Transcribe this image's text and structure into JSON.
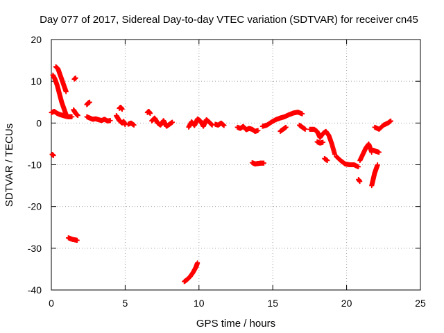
{
  "chart_data": {
    "type": "scatter",
    "title": "Day 077 of 2017, Sidereal Day-to-day VTEC variation (SDTVAR) for receiver cn45",
    "xlabel": "GPS time / hours",
    "ylabel": "SDTVAR / TECUs",
    "xlim": [
      0,
      25
    ],
    "ylim": [
      -40,
      20
    ],
    "xticks": [
      0,
      5,
      10,
      15,
      20,
      25
    ],
    "yticks": [
      -40,
      -30,
      -20,
      -10,
      0,
      10,
      20
    ],
    "grid": true,
    "marker": "plus",
    "series": [
      {
        "name": "SDTVAR",
        "color": "#ff0000",
        "segments": [
          {
            "x": [
              0.1,
              0.25,
              0.4,
              0.55,
              0.7,
              0.85,
              1.0,
              1.1
            ],
            "y": [
              11.5,
              10.5,
              9.0,
              7.0,
              5.0,
              3.5,
              2.0,
              1.5
            ]
          },
          {
            "x": [
              0.3,
              0.45,
              0.6,
              0.75,
              0.9,
              1.0
            ],
            "y": [
              13.5,
              13.0,
              11.5,
              10.0,
              8.5,
              7.5
            ]
          },
          {
            "x": [
              0.0,
              0.2,
              0.4,
              0.6,
              0.8,
              1.0,
              1.2,
              1.4
            ],
            "y": [
              2.5,
              2.8,
              2.3,
              2.0,
              1.8,
              1.6,
              1.5,
              1.5
            ]
          },
          {
            "x": [
              0.05,
              0.15
            ],
            "y": [
              -7.5,
              -7.8
            ]
          },
          {
            "x": [
              1.55,
              1.65
            ],
            "y": [
              10.5,
              10.8
            ]
          },
          {
            "x": [
              1.5,
              1.6,
              1.7,
              1.8
            ],
            "y": [
              3.2,
              2.6,
              2.1,
              1.8
            ]
          },
          {
            "x": [
              1.15,
              1.3,
              1.45,
              1.6,
              1.75
            ],
            "y": [
              -27.5,
              -27.7,
              -27.9,
              -28.0,
              -28.1
            ]
          },
          {
            "x": [
              2.4,
              2.5,
              2.6
            ],
            "y": [
              4.4,
              4.8,
              5.0
            ]
          },
          {
            "x": [
              2.4,
              2.6,
              2.8,
              3.0,
              3.2,
              3.4,
              3.6,
              3.8,
              4.0
            ],
            "y": [
              1.5,
              1.2,
              0.9,
              1.0,
              0.8,
              0.6,
              0.9,
              0.5,
              0.6
            ]
          },
          {
            "x": [
              4.4,
              4.5,
              4.6,
              4.7,
              4.8,
              4.9,
              5.0
            ],
            "y": [
              1.8,
              1.2,
              0.6,
              0.3,
              0.0,
              0.4,
              -0.4
            ]
          },
          {
            "x": [
              4.6,
              4.7,
              4.8
            ],
            "y": [
              3.5,
              3.8,
              3.3
            ]
          },
          {
            "x": [
              5.2,
              5.4,
              5.6
            ],
            "y": [
              -0.3,
              0.0,
              -0.5
            ]
          },
          {
            "x": [
              6.5,
              6.6,
              6.7
            ],
            "y": [
              2.5,
              2.8,
              2.3
            ]
          },
          {
            "x": [
              6.8,
              7.0,
              7.2,
              7.4,
              7.6,
              7.8,
              8.0,
              8.2
            ],
            "y": [
              0.5,
              1.2,
              0.0,
              -0.5,
              0.6,
              -0.8,
              -0.3,
              0.2
            ]
          },
          {
            "x": [
              9.0,
              9.2,
              9.4,
              9.6,
              9.8,
              9.9
            ],
            "y": [
              -38.0,
              -37.5,
              -36.8,
              -35.8,
              -34.5,
              -33.5
            ]
          },
          {
            "x": [
              9.3,
              9.5,
              9.7,
              9.9,
              10.1,
              10.3,
              10.5,
              10.7,
              10.9
            ],
            "y": [
              -1.0,
              0.3,
              -0.6,
              1.0,
              0.5,
              -0.8,
              0.8,
              0.2,
              -0.5
            ]
          },
          {
            "x": [
              11.1,
              11.3,
              11.5,
              11.7
            ],
            "y": [
              -0.3,
              -0.5,
              0.0,
              -0.6
            ]
          },
          {
            "x": [
              12.6,
              12.8,
              13.0,
              13.2,
              13.4,
              13.6,
              13.8,
              14.0
            ],
            "y": [
              -1.0,
              -1.3,
              -0.8,
              -1.6,
              -1.3,
              -1.5,
              -2.0,
              -1.8
            ]
          },
          {
            "x": [
              13.6,
              13.8,
              14.0,
              14.2,
              14.4
            ],
            "y": [
              -9.5,
              -9.8,
              -9.7,
              -9.6,
              -9.6
            ]
          },
          {
            "x": [
              14.3,
              14.6,
              14.9,
              15.2,
              15.5,
              15.8,
              16.1,
              16.4,
              16.7,
              17.0
            ],
            "y": [
              -0.8,
              -0.5,
              0.2,
              0.8,
              1.2,
              1.5,
              2.0,
              2.4,
              2.6,
              2.2
            ]
          },
          {
            "x": [
              15.5,
              15.7,
              15.9
            ],
            "y": [
              -2.0,
              -1.5,
              -1.0
            ]
          },
          {
            "x": [
              16.8,
              17.0,
              17.2
            ],
            "y": [
              -0.5,
              -1.0,
              -1.5
            ]
          },
          {
            "x": [
              17.5,
              17.8,
              18.0,
              18.2,
              18.4,
              18.6,
              18.8,
              19.0,
              19.2
            ],
            "y": [
              -1.5,
              -1.5,
              -2.0,
              -3.5,
              -2.5,
              -2.0,
              -3.0,
              -5.0,
              -7.5
            ]
          },
          {
            "x": [
              18.0,
              18.2,
              18.4
            ],
            "y": [
              -4.5,
              -4.8,
              -4.6
            ]
          },
          {
            "x": [
              18.5,
              18.7
            ],
            "y": [
              -8.5,
              -9.0
            ]
          },
          {
            "x": [
              19.3,
              19.6,
              19.9,
              20.2,
              20.5,
              20.8
            ],
            "y": [
              -8.0,
              -9.0,
              -9.8,
              -10.0,
              -10.0,
              -10.5
            ]
          },
          {
            "x": [
              20.9,
              21.1,
              21.3,
              21.5,
              21.7
            ],
            "y": [
              -9.0,
              -7.5,
              -6.0,
              -5.0,
              -7.0
            ]
          },
          {
            "x": [
              20.8,
              20.9
            ],
            "y": [
              -13.5,
              -14.0
            ]
          },
          {
            "x": [
              21.7,
              21.8,
              21.9,
              22.0,
              22.1
            ],
            "y": [
              -15.0,
              -13.5,
              -12.0,
              -11.0,
              -10.0
            ]
          },
          {
            "x": [
              21.8,
              22.0,
              22.2
            ],
            "y": [
              -6.5,
              -6.8,
              -7.0
            ]
          },
          {
            "x": [
              21.9,
              22.2,
              22.5,
              22.8,
              23.0
            ],
            "y": [
              -1.0,
              -1.5,
              -0.5,
              0.0,
              0.5
            ]
          }
        ]
      }
    ]
  }
}
